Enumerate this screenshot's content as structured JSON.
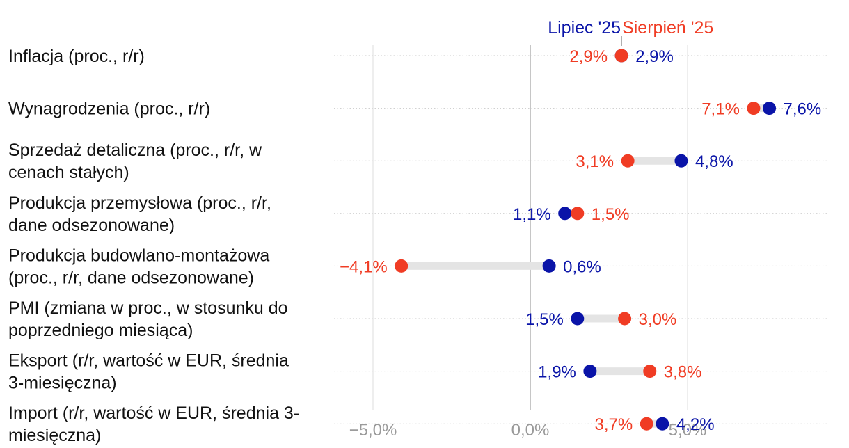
{
  "chart_data": {
    "type": "dumbbell",
    "title": "",
    "xlabel": "",
    "ylabel": "",
    "xlim": [
      -6.2,
      9.4
    ],
    "x_ticks": [
      {
        "value": -5,
        "label": "−5,0%"
      },
      {
        "value": 0,
        "label": "0,0%"
      },
      {
        "value": 5,
        "label": "5,0%"
      }
    ],
    "categories": [
      [
        "Inflacja (proc., r/r)"
      ],
      [
        "Wynagrodzenia (proc., r/r)"
      ],
      [
        "Sprzedaż detaliczna (proc., r/r, w",
        "cenach stałych)"
      ],
      [
        "Produkcja przemysłowa (proc., r/r,",
        "dane odsezonowane)"
      ],
      [
        "Produkcja budowlano-montażowa",
        "(proc., r/r, dane odsezonowane)"
      ],
      [
        "PMI (zmiana w proc., w stosunku do",
        "poprzedniego miesiąca)"
      ],
      [
        "Eksport (r/r, wartość w EUR, średnia",
        "3-miesięczna)"
      ],
      [
        "Import (r/r, wartość w EUR, średnia 3-",
        "miesięczna)"
      ]
    ],
    "series": [
      {
        "name": "Lipiec '25",
        "color": "#0a14a8",
        "values": [
          2.9,
          7.6,
          4.8,
          1.1,
          0.6,
          1.5,
          1.9,
          4.2
        ],
        "labels": [
          "2,9%",
          "7,6%",
          "4,8%",
          "1,1%",
          "0,6%",
          "1,5%",
          "1,9%",
          "4,2%"
        ]
      },
      {
        "name": "Sierpień '25",
        "color": "#f03c24",
        "values": [
          2.9,
          7.1,
          3.1,
          1.5,
          -4.1,
          3.0,
          3.8,
          3.7
        ],
        "labels": [
          "2,9%",
          "7,1%",
          "3,1%",
          "1,5%",
          "−4,1%",
          "3,0%",
          "3,8%",
          "3,7%"
        ]
      }
    ],
    "legend_placement": "top, above first row",
    "grid": true
  }
}
